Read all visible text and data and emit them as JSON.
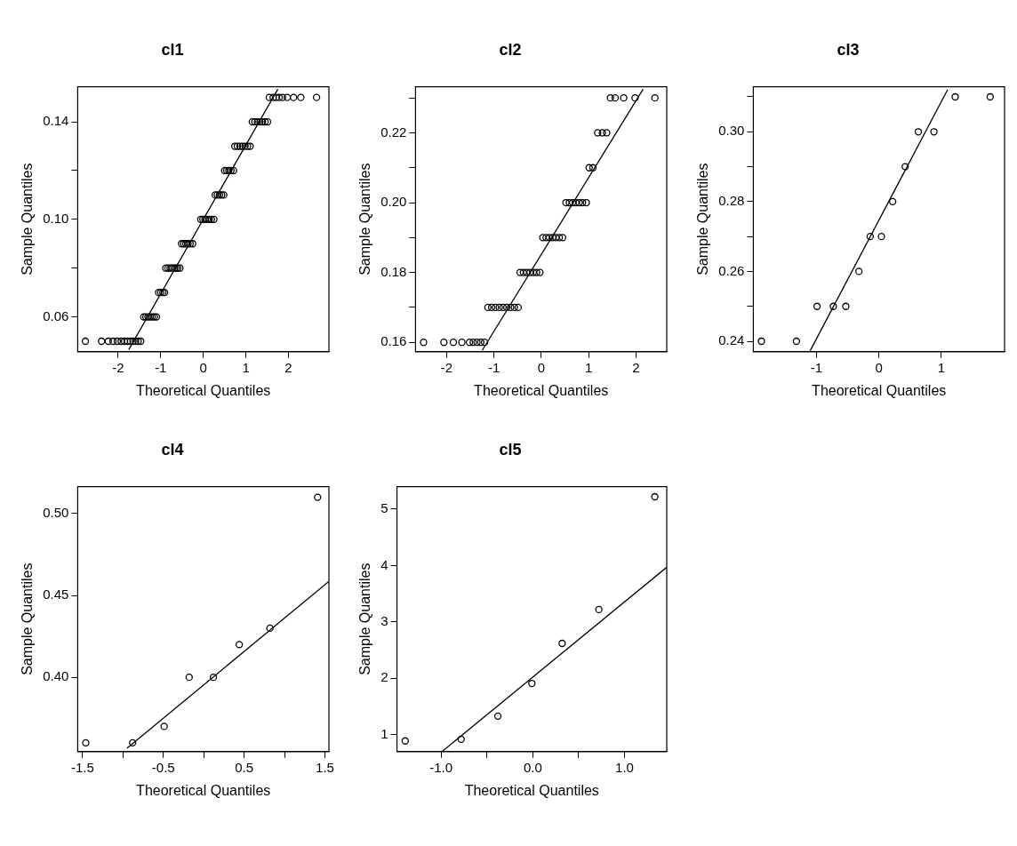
{
  "chart_data": [
    {
      "type": "scatter",
      "title": "cl1",
      "xlabel": "Theoretical Quantiles",
      "ylabel": "Sample Quantiles",
      "xlim": [
        -2.95,
        2.95
      ],
      "ylim": [
        0.0457,
        0.1544
      ],
      "xticks": [
        -2,
        -1,
        0,
        1,
        2
      ],
      "yticks": [
        0.06,
        {
          "value": 0.08,
          "label": null
        },
        {
          "value": 0.1,
          "label": "0.10"
        },
        {
          "value": 0.12,
          "label": null
        },
        0.14
      ],
      "series": [
        {
          "type": "scatter",
          "marker": "circle",
          "color": "#000000",
          "x": [
            -2.77,
            -2.39,
            -2.23,
            -2.12,
            -2.02,
            -1.93,
            -1.85,
            -1.78,
            -1.71,
            -1.65,
            -1.59,
            -1.53,
            -1.47,
            -1.4,
            -1.35,
            -1.3,
            -1.25,
            -1.2,
            -1.15,
            -1.1,
            -1.05,
            -1.0,
            -0.95,
            -0.91,
            -0.88,
            -0.83,
            -0.78,
            -0.73,
            -0.68,
            -0.64,
            -0.6,
            -0.55,
            -0.51,
            -0.46,
            -0.41,
            -0.36,
            -0.31,
            -0.25,
            -0.06,
            -0.01,
            0.04,
            0.09,
            0.14,
            0.19,
            0.25,
            0.28,
            0.33,
            0.38,
            0.43,
            0.48,
            0.5,
            0.55,
            0.6,
            0.65,
            0.71,
            0.74,
            0.8,
            0.86,
            0.92,
            0.98,
            1.04,
            1.1,
            1.15,
            1.21,
            1.27,
            1.33,
            1.39,
            1.45,
            1.51,
            1.55,
            1.64,
            1.71,
            1.78,
            1.86,
            1.97,
            2.12,
            2.29,
            2.66
          ],
          "values": [
            0.05,
            0.05,
            0.05,
            0.05,
            0.05,
            0.05,
            0.05,
            0.05,
            0.05,
            0.05,
            0.05,
            0.05,
            0.05,
            0.06,
            0.06,
            0.06,
            0.06,
            0.06,
            0.06,
            0.06,
            0.07,
            0.07,
            0.07,
            0.07,
            0.08,
            0.08,
            0.08,
            0.08,
            0.08,
            0.08,
            0.08,
            0.08,
            0.09,
            0.09,
            0.09,
            0.09,
            0.09,
            0.09,
            0.1,
            0.1,
            0.1,
            0.1,
            0.1,
            0.1,
            0.1,
            0.11,
            0.11,
            0.11,
            0.11,
            0.11,
            0.12,
            0.12,
            0.12,
            0.12,
            0.12,
            0.13,
            0.13,
            0.13,
            0.13,
            0.13,
            0.13,
            0.13,
            0.14,
            0.14,
            0.14,
            0.14,
            0.14,
            0.14,
            0.14,
            0.15,
            0.15,
            0.15,
            0.15,
            0.15,
            0.15,
            0.15,
            0.15,
            0.15
          ]
        },
        {
          "type": "line",
          "marker": "none",
          "color": "#000000",
          "x": [
            -1.75,
            1.75
          ],
          "values": [
            0.0466,
            0.1534
          ]
        }
      ]
    },
    {
      "type": "scatter",
      "title": "cl2",
      "xlabel": "Theoretical Quantiles",
      "ylabel": "Sample Quantiles",
      "xlim": [
        -2.66,
        2.65
      ],
      "ylim": [
        0.1573,
        0.2332
      ],
      "xticks": [
        -2,
        -1,
        0,
        1,
        2
      ],
      "yticks": [
        0.16,
        {
          "value": 0.17,
          "label": null
        },
        0.18,
        {
          "value": 0.19,
          "label": null
        },
        {
          "value": 0.2,
          "label": "0.20"
        },
        {
          "value": 0.21,
          "label": null
        },
        0.22,
        {
          "value": 0.23,
          "label": null
        }
      ],
      "series": [
        {
          "type": "scatter",
          "marker": "circle",
          "color": "#000000",
          "x": [
            -2.49,
            -2.06,
            -1.86,
            -1.68,
            -1.52,
            -1.44,
            -1.36,
            -1.28,
            -1.2,
            -1.13,
            -1.05,
            -0.97,
            -0.89,
            -0.81,
            -0.73,
            -0.65,
            -0.57,
            -0.49,
            -0.45,
            -0.38,
            -0.31,
            -0.24,
            -0.17,
            -0.1,
            -0.03,
            0.03,
            0.1,
            0.17,
            0.24,
            0.31,
            0.38,
            0.45,
            0.52,
            0.59,
            0.66,
            0.73,
            0.8,
            0.87,
            0.95,
            1.01,
            1.09,
            1.19,
            1.29,
            1.38,
            1.46,
            1.56,
            1.74,
            1.98,
            2.4
          ],
          "values": [
            0.16,
            0.16,
            0.16,
            0.16,
            0.16,
            0.16,
            0.16,
            0.16,
            0.16,
            0.17,
            0.17,
            0.17,
            0.17,
            0.17,
            0.17,
            0.17,
            0.17,
            0.17,
            0.18,
            0.18,
            0.18,
            0.18,
            0.18,
            0.18,
            0.18,
            0.19,
            0.19,
            0.19,
            0.19,
            0.19,
            0.19,
            0.19,
            0.2,
            0.2,
            0.2,
            0.2,
            0.2,
            0.2,
            0.2,
            0.21,
            0.21,
            0.22,
            0.22,
            0.22,
            0.23,
            0.23,
            0.23,
            0.23,
            0.23
          ]
        },
        {
          "type": "line",
          "marker": "none",
          "color": "#000000",
          "x": [
            -1.25,
            2.15
          ],
          "values": [
            0.1577,
            0.2325
          ]
        }
      ]
    },
    {
      "type": "scatter",
      "title": "cl3",
      "xlabel": "Theoretical Quantiles",
      "ylabel": "Sample Quantiles",
      "xlim": [
        -2.01,
        2.01
      ],
      "ylim": [
        0.237,
        0.3129
      ],
      "xticks": [
        -1,
        0,
        1
      ],
      "yticks": [
        0.24,
        {
          "value": 0.25,
          "label": null
        },
        0.26,
        {
          "value": 0.27,
          "label": null
        },
        0.28,
        {
          "value": 0.29,
          "label": null
        },
        {
          "value": 0.3,
          "label": "0.30"
        },
        {
          "value": 0.31,
          "label": null
        }
      ],
      "series": [
        {
          "type": "scatter",
          "marker": "circle",
          "color": "#000000",
          "x": [
            -1.88,
            -1.32,
            -0.99,
            -0.73,
            -0.53,
            -0.32,
            -0.14,
            0.04,
            0.22,
            0.42,
            0.63,
            0.88,
            1.22,
            1.78
          ],
          "values": [
            0.24,
            0.24,
            0.25,
            0.25,
            0.25,
            0.26,
            0.27,
            0.27,
            0.28,
            0.29,
            0.3,
            0.3,
            0.31,
            0.31
          ]
        },
        {
          "type": "line",
          "marker": "none",
          "color": "#000000",
          "x": [
            -1.1,
            1.1
          ],
          "values": [
            0.2373,
            0.3121
          ]
        }
      ]
    },
    {
      "type": "scatter",
      "title": "cl4",
      "xlabel": "Theoretical Quantiles",
      "ylabel": "Sample Quantiles",
      "xlim": [
        -1.56,
        1.55
      ],
      "ylim": [
        0.3546,
        0.5165
      ],
      "xticks": [
        -1.5,
        {
          "value": -1,
          "label": null
        },
        -0.5,
        {
          "value": 0,
          "label": null
        },
        0.5,
        {
          "value": 1,
          "label": null
        },
        1.5
      ],
      "yticks": [
        {
          "value": 0.4,
          "label": "0.40"
        },
        0.45,
        {
          "value": 0.5,
          "label": "0.50"
        }
      ],
      "series": [
        {
          "type": "scatter",
          "marker": "circle",
          "color": "#000000",
          "x": [
            -1.46,
            -0.88,
            -0.49,
            -0.18,
            0.12,
            0.44,
            0.82,
            1.41
          ],
          "values": [
            0.36,
            0.36,
            0.37,
            0.4,
            0.4,
            0.42,
            0.43,
            0.51
          ]
        },
        {
          "type": "line",
          "marker": "none",
          "color": "#000000",
          "x": [
            -0.95,
            1.55
          ],
          "values": [
            0.3566,
            0.4586
          ]
        }
      ]
    },
    {
      "type": "scatter",
      "title": "cl5",
      "xlabel": "Theoretical Quantiles",
      "ylabel": "Sample Quantiles",
      "xlim": [
        -1.48,
        1.46
      ],
      "ylim": [
        0.7,
        5.4
      ],
      "xticks": [
        {
          "value": -1,
          "label": "-1.0"
        },
        {
          "value": -0.5,
          "label": null
        },
        {
          "value": 0,
          "label": "0.0"
        },
        {
          "value": 0.5,
          "label": null
        },
        {
          "value": 1,
          "label": "1.0"
        }
      ],
      "yticks": [
        1,
        2,
        3,
        4,
        5
      ],
      "series": [
        {
          "type": "scatter",
          "marker": "circle",
          "color": "#000000",
          "x": [
            -1.39,
            -0.78,
            -0.38,
            -0.01,
            0.32,
            0.72,
            1.33
          ],
          "values": [
            0.89,
            0.92,
            1.33,
            1.91,
            2.62,
            3.22,
            5.22
          ]
        },
        {
          "type": "line",
          "marker": "none",
          "color": "#000000",
          "x": [
            -0.99,
            1.46
          ],
          "values": [
            0.7,
            3.97
          ]
        }
      ]
    }
  ]
}
